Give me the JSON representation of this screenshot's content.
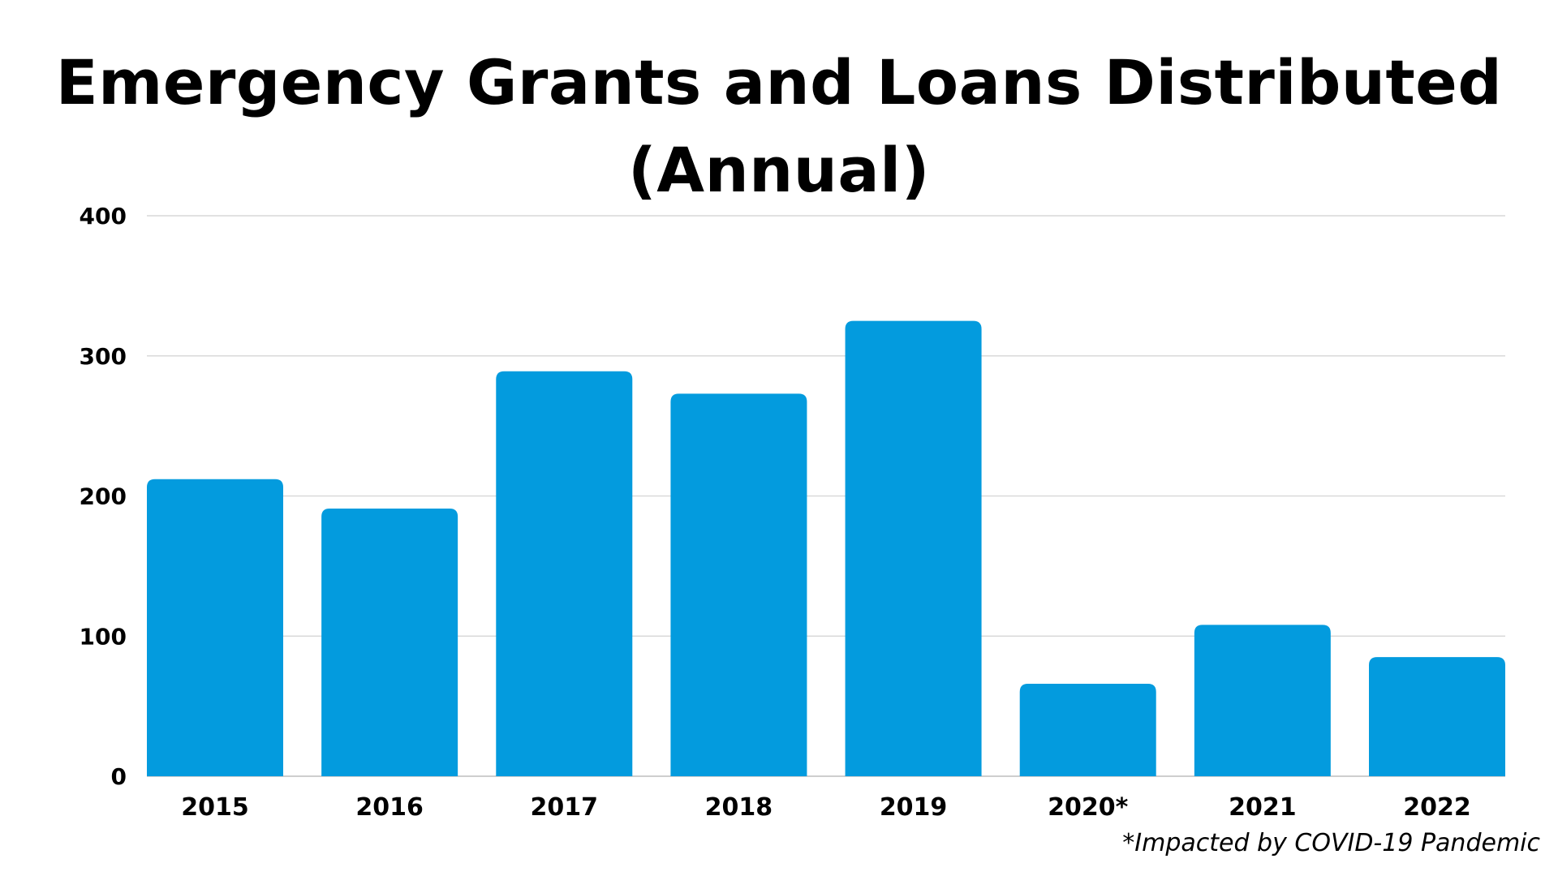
{
  "chart_data": {
    "type": "bar",
    "title": "Emergency Grants and Loans Distributed",
    "subtitle": "(Annual)",
    "xlabel": "",
    "ylabel": "",
    "categories": [
      "2015",
      "2016",
      "2017",
      "2018",
      "2019",
      "2020*",
      "2021",
      "2022"
    ],
    "values": [
      212,
      191,
      289,
      273,
      325,
      66,
      108,
      85
    ],
    "ylim": [
      0,
      400
    ],
    "yticks": [
      0,
      100,
      200,
      300,
      400
    ],
    "grid": true,
    "legend": "none",
    "bar_color": "#039BDE",
    "annotation": "*Impacted by COVID-19 Pandemic"
  },
  "colors": {
    "bar": "#039BDE",
    "grid": "#D9D9D9",
    "baseline": "#BDBDBD",
    "text": "#000000"
  }
}
